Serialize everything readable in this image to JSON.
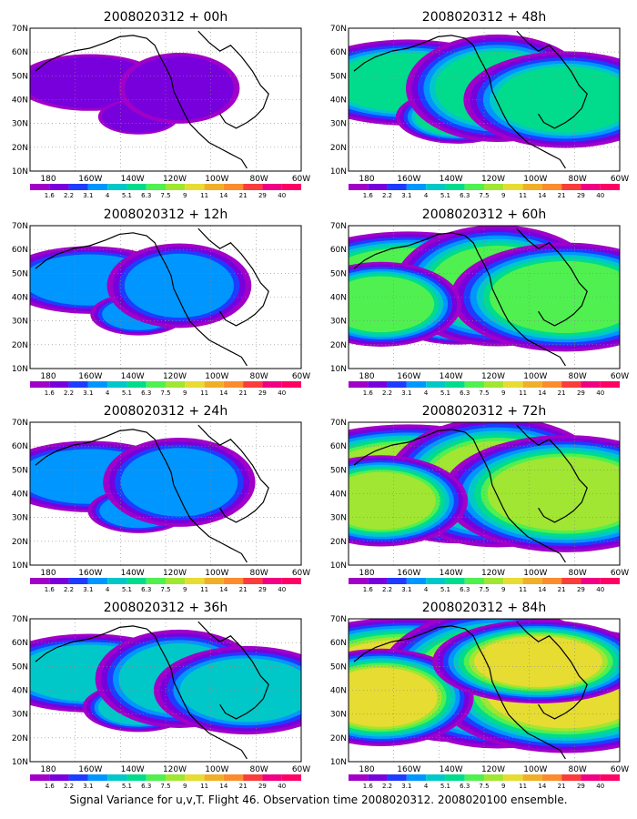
{
  "figure": {
    "caption": "Signal Variance for u,v,T. Flight 46. Observation time 2008020312. 2008020100 ensemble."
  },
  "map": {
    "lon_labels": [
      "180",
      "160W",
      "140W",
      "120W",
      "100W",
      "80W",
      "60W"
    ],
    "lat_labels": [
      "10N",
      "20N",
      "30N",
      "40N",
      "50N",
      "60N",
      "70N"
    ]
  },
  "colorbar": {
    "levels": [
      "1.6",
      "2.2",
      "3.1",
      "4",
      "5.1",
      "6.3",
      "7.5",
      "9",
      "11",
      "14",
      "21",
      "29",
      "40"
    ],
    "colors": [
      "#a000c8",
      "#7800dc",
      "#1e3cff",
      "#0096ff",
      "#00c8c8",
      "#00dc8c",
      "#50f050",
      "#a0e632",
      "#e6dc32",
      "#f0af28",
      "#fa8c2d",
      "#fa3c3c",
      "#f00082",
      "#ff0064"
    ]
  },
  "panels": [
    {
      "title": "2008020312 + 00h",
      "intensity": 0.15
    },
    {
      "title": "2008020312 + 48h",
      "intensity": 0.55
    },
    {
      "title": "2008020312 + 12h",
      "intensity": 0.3
    },
    {
      "title": "2008020312 + 60h",
      "intensity": 0.7
    },
    {
      "title": "2008020312 + 24h",
      "intensity": 0.35
    },
    {
      "title": "2008020312 + 72h",
      "intensity": 0.8
    },
    {
      "title": "2008020312 + 36h",
      "intensity": 0.45
    },
    {
      "title": "2008020312 + 84h",
      "intensity": 0.9
    }
  ]
}
